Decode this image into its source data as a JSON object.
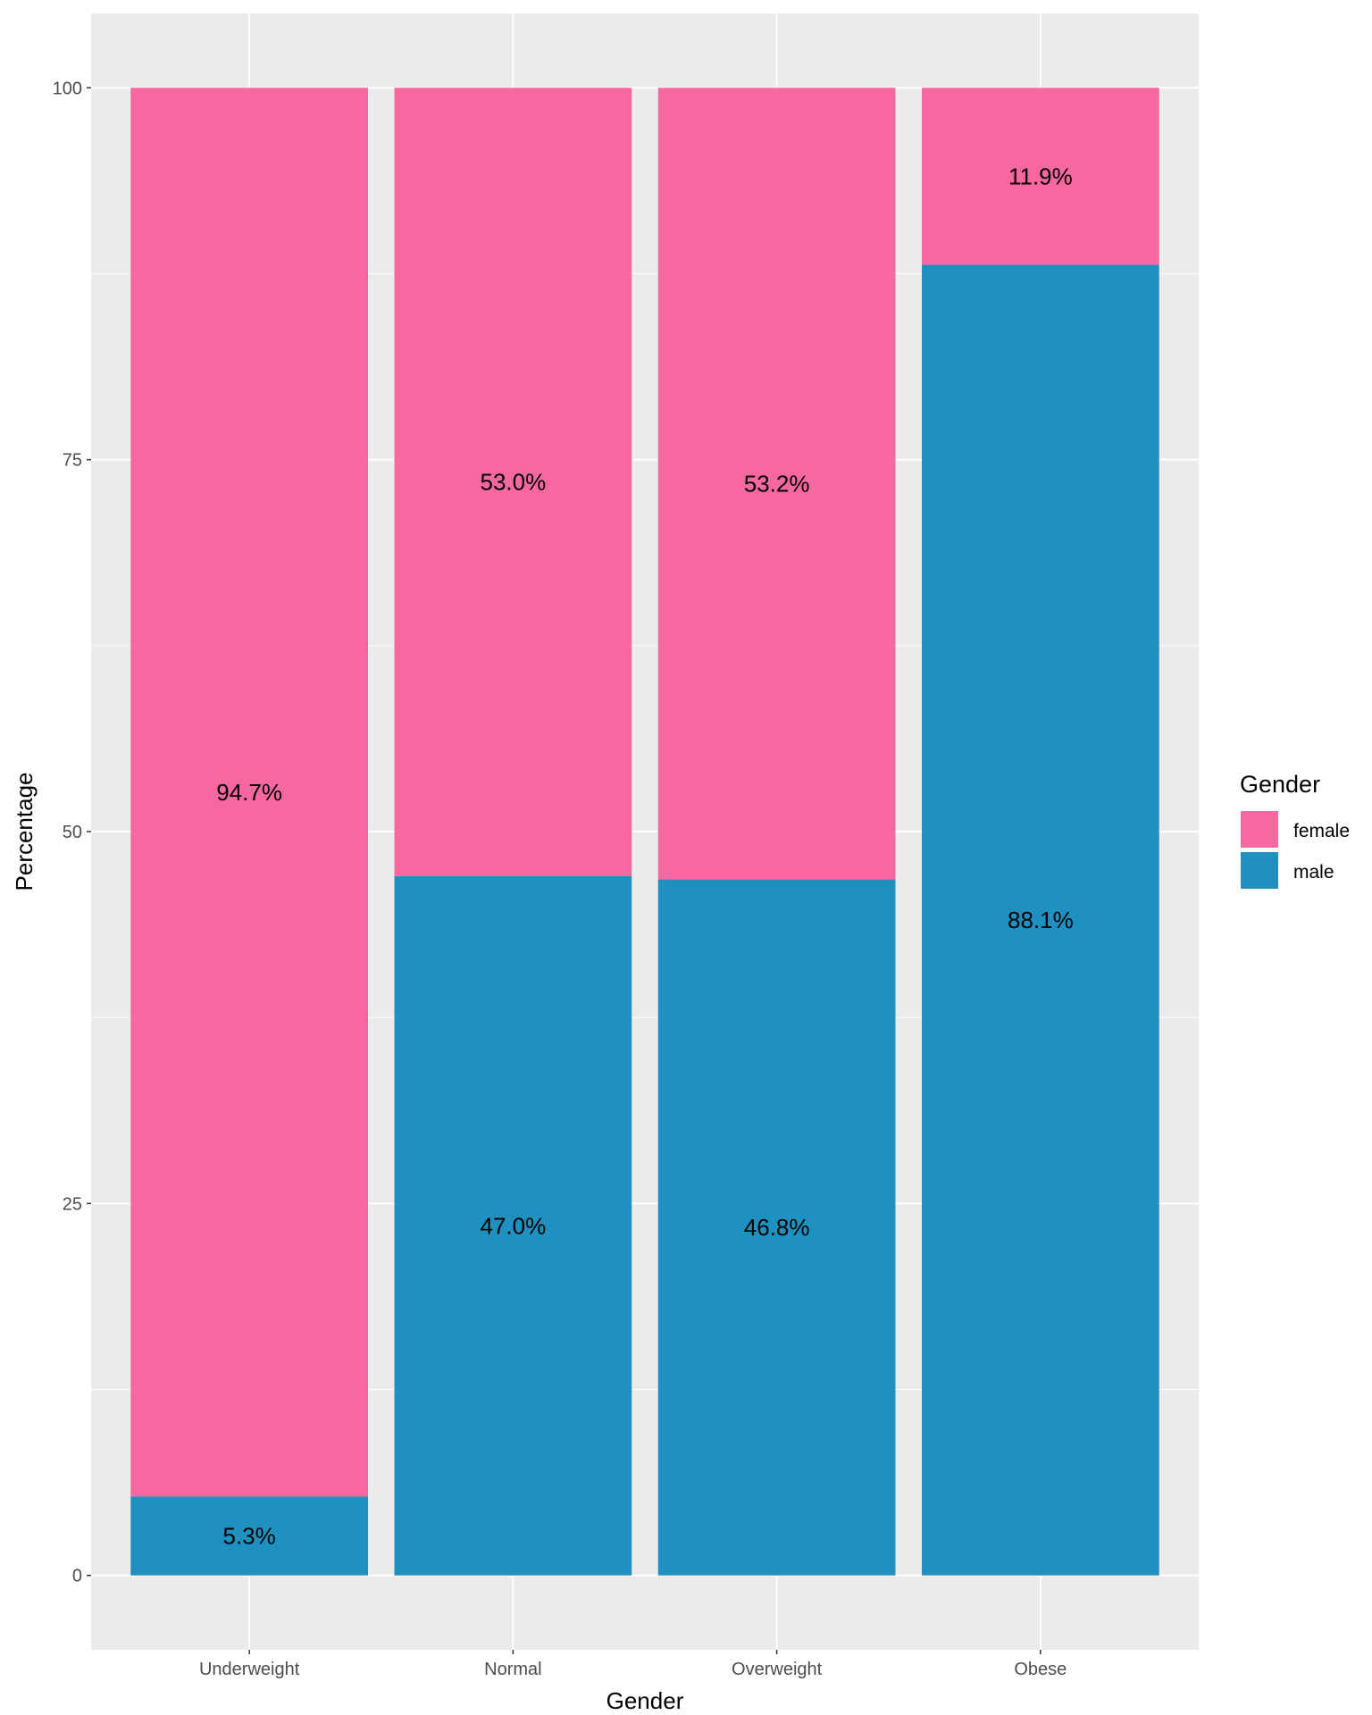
{
  "chart_data": {
    "type": "bar",
    "stacked": true,
    "title": "",
    "xlabel": "Gender",
    "ylabel": "Percentage",
    "ylim": [
      -5,
      105
    ],
    "yticks": [
      0,
      25,
      50,
      75,
      100
    ],
    "categories": [
      "Underweight",
      "Normal",
      "Overweight",
      "Obese"
    ],
    "series": [
      {
        "name": "male",
        "color": "#1F91C0",
        "values": [
          5.3,
          47.0,
          46.8,
          88.1
        ],
        "labels": [
          "5.3%",
          "47.0%",
          "46.8%",
          "88.1%"
        ]
      },
      {
        "name": "female",
        "color": "#F768A1",
        "values": [
          94.7,
          53.0,
          53.2,
          11.9
        ],
        "labels": [
          "94.7%",
          "53.0%",
          "53.2%",
          "11.9%"
        ]
      }
    ],
    "legend": {
      "title": "Gender",
      "position": "right",
      "entries": [
        {
          "label": "female",
          "color": "#F768A1"
        },
        {
          "label": "male",
          "color": "#1F91C0"
        }
      ]
    },
    "grid": true,
    "panel_background": "#EBEBEB"
  }
}
